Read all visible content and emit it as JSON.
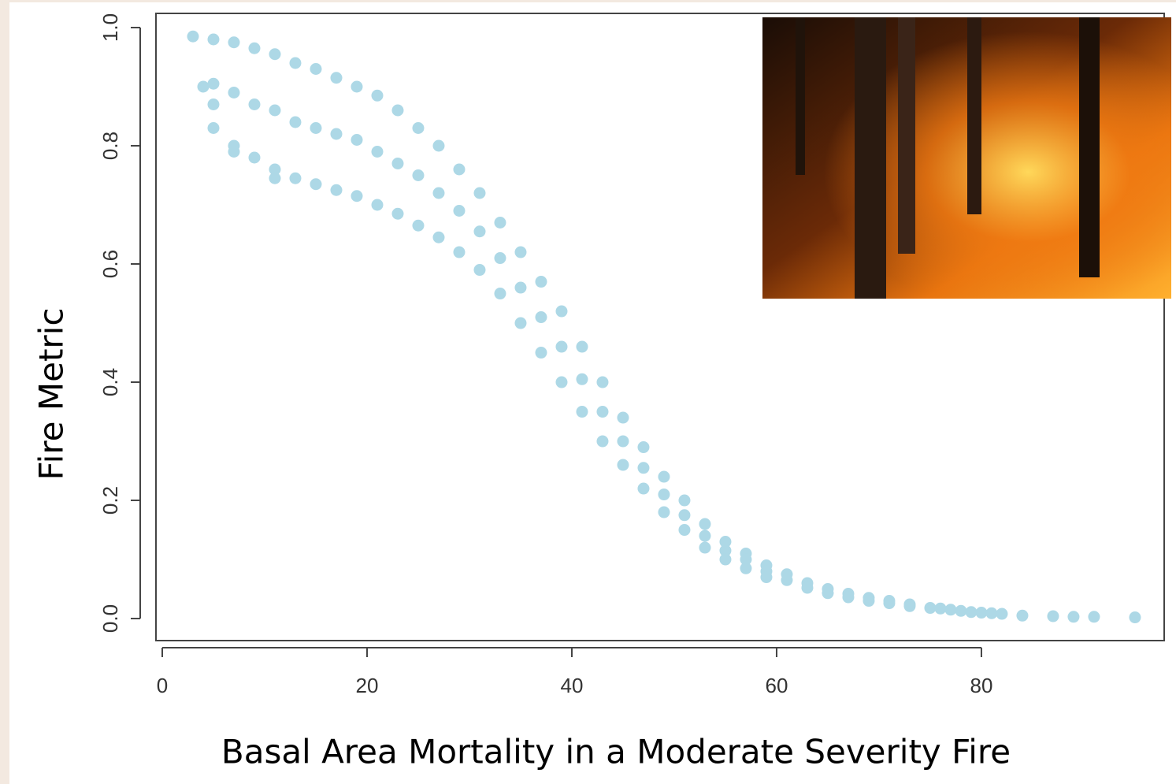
{
  "chart_data": {
    "type": "scatter",
    "xlabel": "Basal Area Mortality in a Moderate Severity Fire",
    "ylabel": "Fire Metric",
    "color": "#add8e6",
    "xlim": [
      -0.615,
      97.85
    ],
    "ylim": [
      -0.0373,
      1.024
    ],
    "xticks": [
      0,
      20,
      40,
      60,
      80
    ],
    "yticks": [
      {
        "value": 0,
        "label": "0.0"
      },
      0.2,
      0.4,
      0.6,
      0.8,
      {
        "value": 1,
        "label": "1.0"
      }
    ],
    "x": [
      3,
      4,
      5,
      5,
      5,
      5,
      7,
      7,
      7,
      7,
      9,
      9,
      9,
      11,
      11,
      11,
      11,
      13,
      13,
      13,
      15,
      15,
      15,
      17,
      17,
      17,
      19,
      19,
      19,
      21,
      21,
      21,
      23,
      23,
      23,
      25,
      25,
      25,
      27,
      27,
      27,
      29,
      29,
      29,
      31,
      31,
      31,
      33,
      33,
      33,
      35,
      35,
      35,
      37,
      37,
      37,
      39,
      39,
      39,
      41,
      41,
      41,
      43,
      43,
      43,
      45,
      45,
      45,
      47,
      47,
      47,
      49,
      49,
      49,
      51,
      51,
      51,
      53,
      53,
      53,
      55,
      55,
      55,
      57,
      57,
      57,
      59,
      59,
      59,
      61,
      61,
      63,
      63,
      65,
      65,
      67,
      67,
      69,
      69,
      71,
      71,
      73,
      73,
      75,
      76,
      77,
      78,
      79,
      80,
      81,
      82,
      84,
      87,
      89,
      91,
      95
    ],
    "values": [
      0.985,
      0.9,
      0.98,
      0.905,
      0.83,
      0.87,
      0.975,
      0.89,
      0.8,
      0.79,
      0.965,
      0.87,
      0.78,
      0.955,
      0.86,
      0.76,
      0.745,
      0.94,
      0.84,
      0.745,
      0.93,
      0.83,
      0.735,
      0.915,
      0.82,
      0.725,
      0.9,
      0.81,
      0.715,
      0.885,
      0.79,
      0.7,
      0.86,
      0.77,
      0.685,
      0.83,
      0.75,
      0.665,
      0.8,
      0.72,
      0.645,
      0.76,
      0.69,
      0.62,
      0.72,
      0.655,
      0.59,
      0.67,
      0.61,
      0.55,
      0.62,
      0.56,
      0.5,
      0.57,
      0.51,
      0.45,
      0.52,
      0.46,
      0.4,
      0.46,
      0.405,
      0.35,
      0.4,
      0.35,
      0.3,
      0.34,
      0.3,
      0.26,
      0.29,
      0.255,
      0.22,
      0.24,
      0.21,
      0.18,
      0.2,
      0.175,
      0.15,
      0.16,
      0.14,
      0.12,
      0.13,
      0.115,
      0.1,
      0.11,
      0.1,
      0.085,
      0.09,
      0.08,
      0.07,
      0.075,
      0.065,
      0.06,
      0.052,
      0.05,
      0.043,
      0.042,
      0.036,
      0.035,
      0.03,
      0.03,
      0.026,
      0.024,
      0.021,
      0.018,
      0.017,
      0.015,
      0.013,
      0.011,
      0.01,
      0.009,
      0.008,
      0.005,
      0.004,
      0.003,
      0.003,
      0.002
    ]
  }
}
